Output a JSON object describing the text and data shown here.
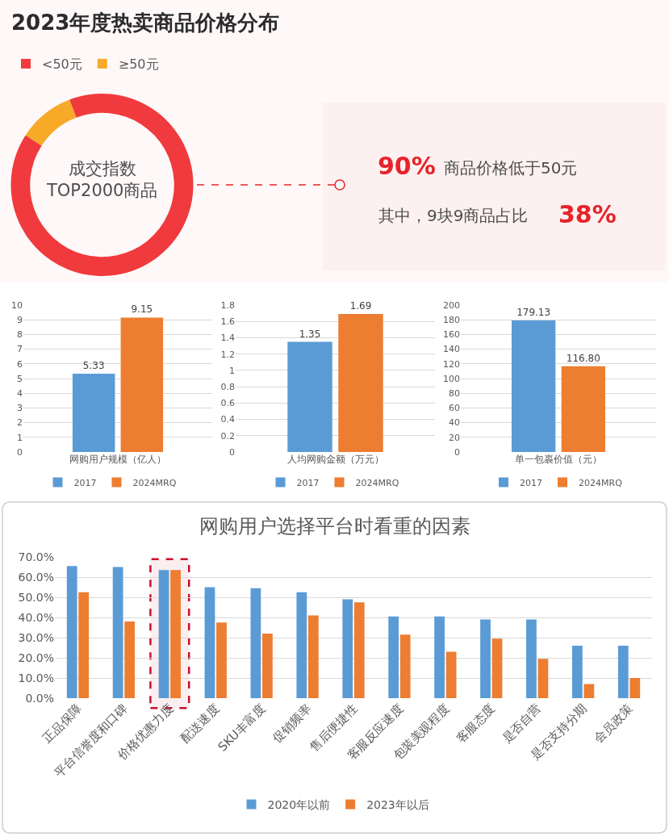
{
  "chart_data": [
    {
      "type": "donut",
      "title": "2023年度热卖商品价格分布",
      "categories": [
        "<50元",
        "≥50元"
      ],
      "values": [
        90,
        10
      ],
      "colors": [
        "#f03a3d",
        "#f6aa27"
      ],
      "legend": "top left",
      "annotations": [
        "成交指数\nTOP2000商品",
        "90%",
        "商品价格低于50元",
        "其中，9块9商品占比",
        "38%"
      ]
    },
    {
      "type": "bar",
      "categories": [
        "网购用户规模（亿人）"
      ],
      "series": [
        {
          "name": "2017",
          "color": "#5b9bd5",
          "values": [
            5.33
          ]
        },
        {
          "name": "2024MRQ",
          "color": "#ed7d31",
          "values": [
            9.15
          ]
        }
      ],
      "ylim": [
        0,
        10
      ],
      "yticks": [
        0,
        1,
        2,
        3,
        4,
        5,
        6,
        7,
        8,
        9,
        10
      ],
      "grid": "y",
      "legend": "bottom",
      "data_labels": true
    },
    {
      "type": "bar",
      "categories": [
        "人均网购金额（万元）"
      ],
      "series": [
        {
          "name": "2017",
          "color": "#5b9bd5",
          "values": [
            1.35
          ]
        },
        {
          "name": "2024MRQ",
          "color": "#ed7d31",
          "values": [
            1.69
          ]
        }
      ],
      "ylim": [
        0,
        1.8
      ],
      "yticks": [
        0,
        0.2,
        0.4,
        0.6,
        0.8,
        1,
        1.2,
        1.4,
        1.6,
        1.8
      ],
      "grid": "y",
      "legend": "bottom",
      "data_labels": true
    },
    {
      "type": "bar",
      "categories": [
        "单一包裹价值（元）"
      ],
      "series": [
        {
          "name": "2017",
          "color": "#5b9bd5",
          "values": [
            179.13
          ],
          "value_labels": [
            "179.13"
          ]
        },
        {
          "name": "2024MRQ",
          "color": "#ed7d31",
          "values": [
            116.8
          ],
          "value_labels": [
            "116.80"
          ]
        }
      ],
      "ylim": [
        0,
        200
      ],
      "yticks": [
        0,
        20,
        40,
        60,
        80,
        100,
        120,
        140,
        160,
        180,
        200
      ],
      "grid": "y",
      "legend": "bottom"
    },
    {
      "type": "bar",
      "title": "网购用户选择平台时看重的因素",
      "categories": [
        "正品保障",
        "平台信誉度和口碑",
        "价格优惠力度",
        "配送速度",
        "SKU丰富度",
        "促销频率",
        "售后便捷性",
        "客服反应速度",
        "包装美观程度",
        "客服态度",
        "是否自营",
        "是否支持分期",
        "会员政策"
      ],
      "series": [
        {
          "name": "2020年以前",
          "color": "#5b9bd5",
          "values": [
            65.5,
            65,
            63.5,
            55,
            54.5,
            52.5,
            49,
            40.5,
            40.5,
            39,
            39,
            26,
            26
          ]
        },
        {
          "name": "2023年以后",
          "color": "#ed7d31",
          "values": [
            52.5,
            38,
            63.5,
            37.5,
            32,
            41,
            47.5,
            31.5,
            23,
            29.5,
            19.5,
            7,
            10
          ]
        }
      ],
      "ylim": [
        0,
        70
      ],
      "yticks": [
        {
          "value": 0,
          "label": "0.0%"
        },
        {
          "value": 10,
          "label": "10.0%"
        },
        {
          "value": 20,
          "label": "20.0%"
        },
        {
          "value": 30,
          "label": "30.0%"
        },
        {
          "value": 40,
          "label": "40.0%"
        },
        {
          "value": 50,
          "label": "50.0%"
        },
        {
          "value": 60,
          "label": "60.0%"
        },
        {
          "value": 70,
          "label": "70.0%"
        }
      ],
      "grid": "y",
      "legend": "bottom",
      "bands": [
        {
          "axis": "x",
          "from": "价格优惠力度",
          "to": "价格优惠力度",
          "color": "#c8102e"
        }
      ]
    }
  ]
}
